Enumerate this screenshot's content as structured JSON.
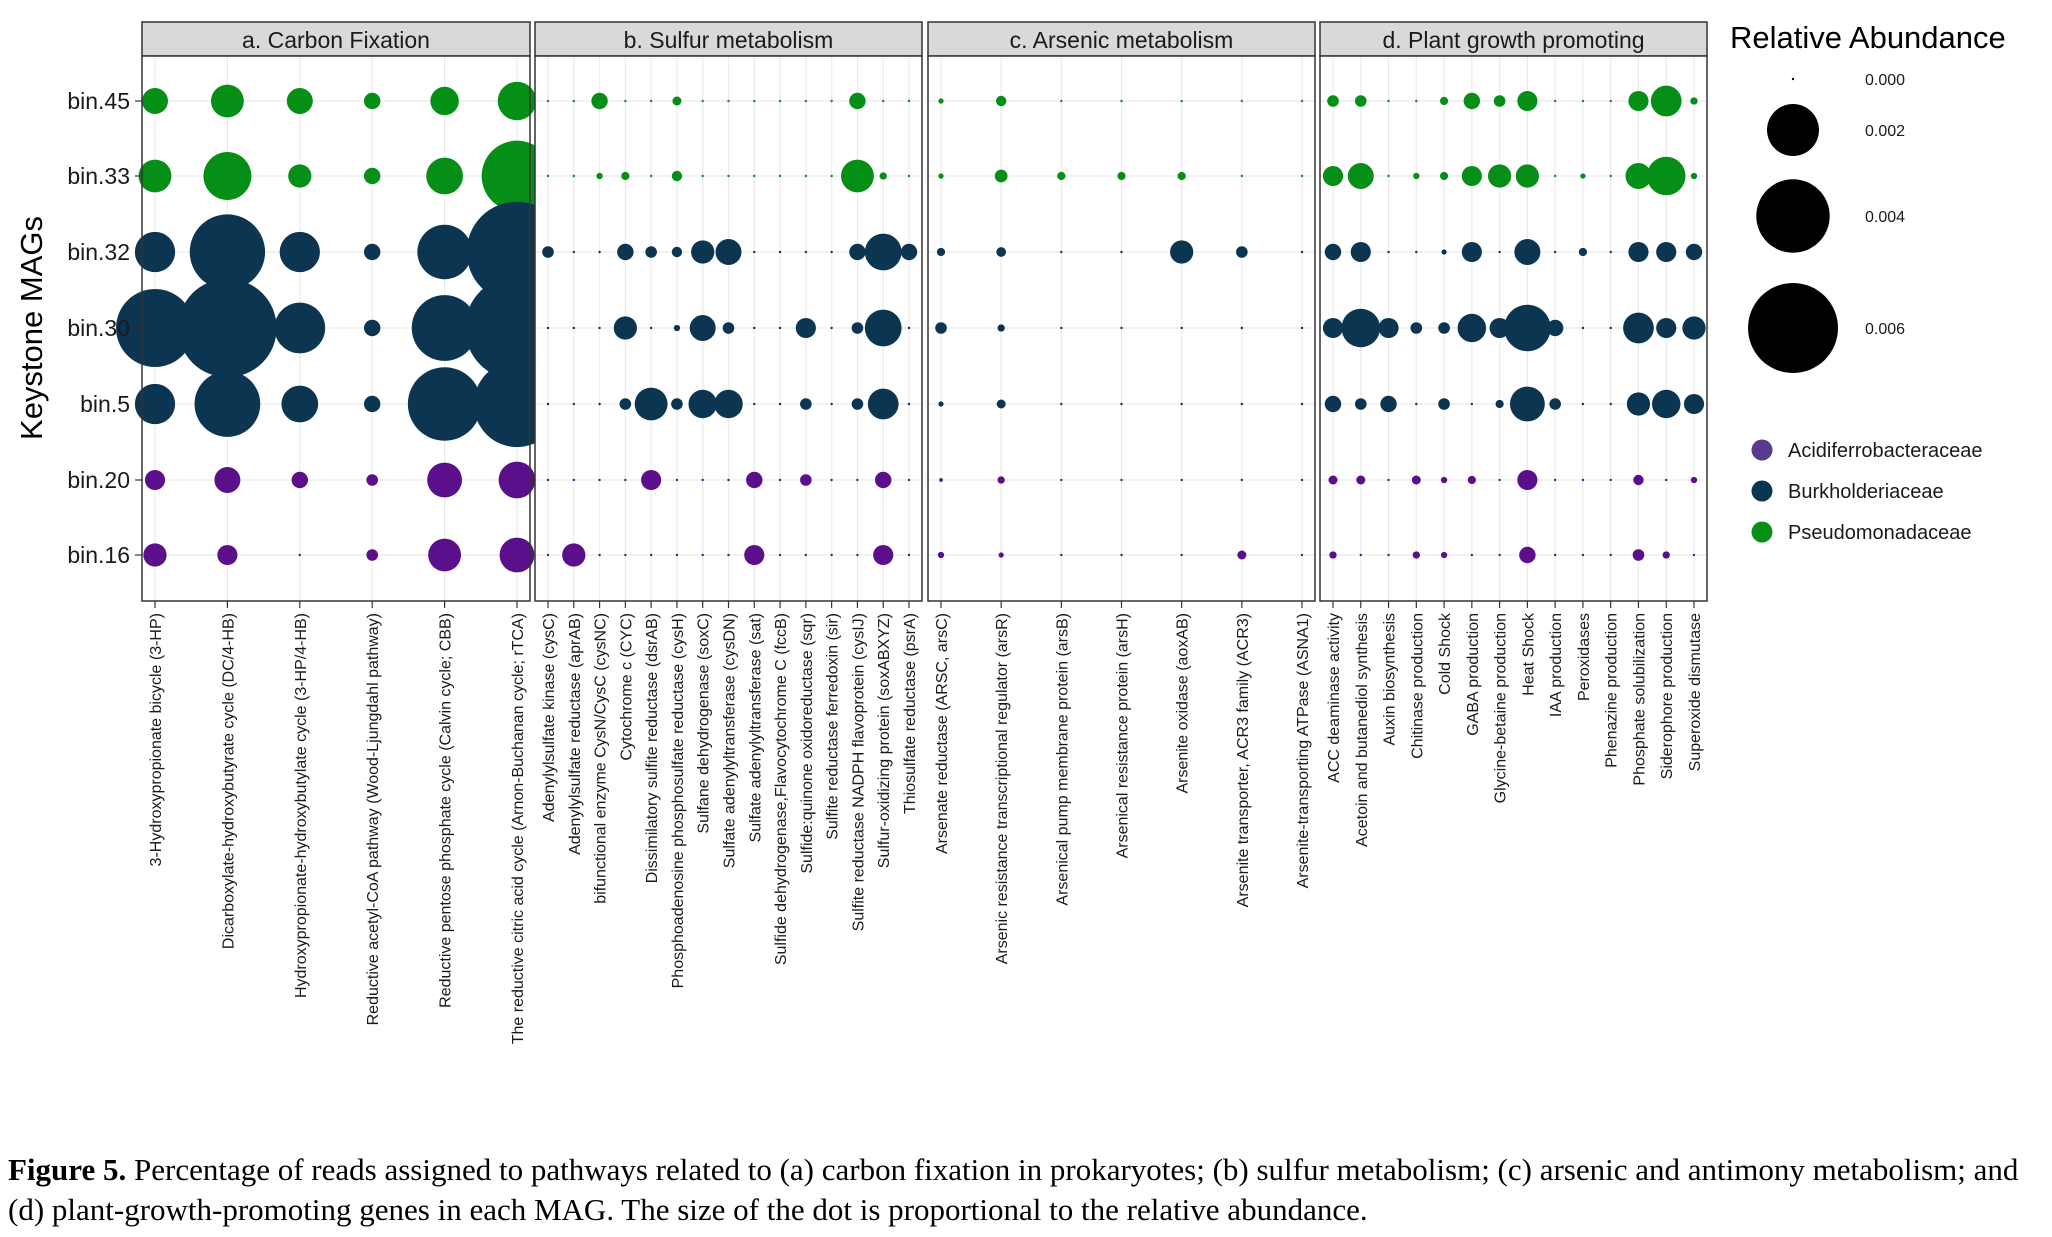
{
  "caption": {
    "label": "Figure 5.",
    "text": "Percentage of reads assigned to pathways related to (a) carbon fixation in prokaryotes; (b) sulfur metabolism; (c) arsenic and antimony metabolism; and (d) plant-growth-promoting genes in each MAG. The size of the dot is proportional to the relative abundance."
  },
  "chart_data": {
    "type": "scatter",
    "subtype": "bubble-matrix",
    "ylabel": "Keystone MAGs",
    "rows": [
      "bin.45",
      "bin.33",
      "bin.32",
      "bin.30",
      "bin.5",
      "bin.20",
      "bin.16"
    ],
    "row_family": [
      "Pseudomonadaceae",
      "Pseudomonadaceae",
      "Burkholderiaceae",
      "Burkholderiaceae",
      "Burkholderiaceae",
      "Acidiferrobacteraceae",
      "Acidiferrobacteraceae"
    ],
    "colors": {
      "Acidiferrobacteraceae": "#5c0f8b",
      "Burkholderiaceae": "#0c3552",
      "Pseudomonadaceae": "#068f16",
      "legend_Acidiferrobacteraceae": "#5b3a8e",
      "strip_fill": "#d9d9d9",
      "gridline": "#ebebeb"
    },
    "size_legend": {
      "title": "Relative Abundance",
      "values": [
        0.0,
        0.002,
        0.004,
        0.006
      ],
      "labels": [
        "0.000",
        "0.002",
        "0.004",
        "0.006"
      ]
    },
    "color_legend": [
      "Acidiferrobacteraceae",
      "Burkholderiaceae",
      "Pseudomonadaceae"
    ],
    "grid": true,
    "legend_position": "right",
    "panels": [
      {
        "title": "a. Carbon Fixation",
        "columns": [
          {
            "label": "3-Hydroxypropionate bicycle (3-HP)",
            "values": [
              0.0005,
              0.0008,
              0.0012,
              0.0045,
              0.0012,
              0.0003,
              0.0004
            ]
          },
          {
            "label": "Dicarboxylate-hydroxybutyrate cycle (DC/4-HB)",
            "values": [
              0.0008,
              0.0017,
              0.0042,
              0.0072,
              0.0032,
              0.0005,
              0.0003
            ]
          },
          {
            "label": "Hydroxypropionate-hydroxybutylate cycle (3-HP/4-HB)",
            "values": [
              0.0005,
              0.0004,
              0.0012,
              0.0019,
              0.001,
              0.0002,
              0.0
            ]
          },
          {
            "label": "Reductive acetyl-CoA pathway (Wood-Ljungdahl pathway)",
            "values": [
              0.0002,
              0.0002,
              0.0002,
              0.0002,
              0.0002,
              0.0001,
              0.0001
            ]
          },
          {
            "label": "Reductive pentose phosphate cycle (Calvin cycle; CBB)",
            "values": [
              0.0006,
              0.001,
              0.0022,
              0.0032,
              0.004,
              0.0009,
              0.0008
            ]
          },
          {
            "label": "The reductive citric acid cycle (Arnon-Buchanan cycle; rTCA)",
            "values": [
              0.0011,
              0.0037,
              0.0075,
              0.008,
              0.0055,
              0.001,
              0.0009
            ]
          }
        ]
      },
      {
        "title": "b. Sulfur metabolism",
        "columns": [
          {
            "label": "Adenylylsulfate kinase (cysC)",
            "values": [
              0,
              0,
              0.0001,
              0,
              0,
              0,
              0
            ]
          },
          {
            "label": "Adenylylsulfate reductase (aprAB)",
            "values": [
              0,
              0,
              0,
              0,
              0,
              0,
              0.0004
            ]
          },
          {
            "label": "bifunctional enzyme CysN/CysC (cysNC)",
            "values": [
              0.0002,
              3e-05,
              0,
              0,
              0,
              0,
              0
            ]
          },
          {
            "label": "Cytochrome c (CYC)",
            "values": [
              0,
              5e-05,
              0.0002,
              0.0004,
              0.0001,
              0,
              0
            ]
          },
          {
            "label": "Dissimilatory sulfite reductase (dsrAB)",
            "values": [
              0,
              0,
              0.0001,
              0,
              0.0008,
              0.0003,
              0
            ]
          },
          {
            "label": "Phosphoadenosine phosphosulfate reductase (cysH)",
            "values": [
              6e-05,
              8e-05,
              8e-05,
              3e-05,
              0.0001,
              0,
              0
            ]
          },
          {
            "label": "Sulfane dehydrogenase (soxC)",
            "values": [
              0,
              0,
              0.0004,
              0.0005,
              0.0006,
              0,
              0
            ]
          },
          {
            "label": "Sulfate adenylyltransferase (cysDN)",
            "values": [
              0,
              0,
              0.0005,
              0.0001,
              0.0006,
              0,
              0
            ]
          },
          {
            "label": "Sulfate adenylyltransferase (sat)",
            "values": [
              0,
              0,
              0,
              0,
              0,
              0.0002,
              0.0003
            ]
          },
          {
            "label": "Sulfide dehydrogenase,Flavocytochrome C (fccB)",
            "values": [
              0,
              0,
              0,
              0,
              0,
              0,
              0
            ]
          },
          {
            "label": "Sulfide:quinone oxidoreductase (sqr)",
            "values": [
              0,
              0,
              0,
              0.0003,
              0.0001,
              0.0001,
              0
            ]
          },
          {
            "label": "Sulfite reductase ferredoxin (sir)",
            "values": [
              0,
              0,
              0,
              0,
              0,
              0,
              0
            ]
          },
          {
            "label": "Sulfite reductase NADPH flavoprotein (cysIJ)",
            "values": [
              0.0002,
              0.0008,
              0.0002,
              0.0001,
              0.0001,
              0,
              0
            ]
          },
          {
            "label": "Sulfur-oxidizing protein (soxABXYZ)",
            "values": [
              0,
              4e-05,
              0.001,
              0.001,
              0.0007,
              0.0002,
              0.0003
            ]
          },
          {
            "label": "Thiosulfate reductase (psrA)",
            "values": [
              0,
              0,
              0.0002,
              0,
              0,
              0,
              0
            ]
          }
        ]
      },
      {
        "title": "c. Arsenic metabolism",
        "columns": [
          {
            "label": "Arsenate reductase (ARSC, arsC)",
            "values": [
              2e-05,
              2e-05,
              5e-05,
              0.0001,
              2e-05,
              1e-05,
              3e-05
            ]
          },
          {
            "label": "Arsenic resistance transcriptional regulator (arsR)",
            "values": [
              8e-05,
              0.00012,
              7e-05,
              4e-05,
              6e-05,
              4e-05,
              2e-05
            ]
          },
          {
            "label": "Arsenical pump membrane protein (arsB)",
            "values": [
              0,
              5e-05,
              0,
              0,
              0,
              0,
              0
            ]
          },
          {
            "label": "Arsenical resistance protein (arsH)",
            "values": [
              0,
              5e-05,
              0,
              0,
              0,
              0,
              0
            ]
          },
          {
            "label": "Arsenite oxidase (aoxAB)",
            "values": [
              0,
              5e-05,
              0.0004,
              0,
              0,
              0,
              0
            ]
          },
          {
            "label": "Arsenite transporter, ACR3 family (ACR3)",
            "values": [
              0,
              0,
              0.0001,
              0,
              0,
              0,
              6e-05
            ]
          },
          {
            "label": "Arsenite-transporting ATPase (ASNA1)",
            "values": [
              0,
              0,
              0,
              0,
              0,
              0,
              0
            ]
          }
        ]
      },
      {
        "title": "d. Plant growth promoting",
        "columns": [
          {
            "label": "ACC deaminase activity",
            "values": [
              0.0001,
              0.0003,
              0.0002,
              0.0003,
              0.0002,
              6e-05,
              4e-05
            ]
          },
          {
            "label": "Acetoin and butanediol synthesis",
            "values": [
              0.0001,
              0.0005,
              0.0003,
              0.0011,
              0.0001,
              6e-05,
              0
            ]
          },
          {
            "label": "Auxin biosynthesis",
            "values": [
              0,
              0,
              0,
              0.0003,
              0.0002,
              0,
              0
            ]
          },
          {
            "label": "Chitinase production",
            "values": [
              0,
              3e-05,
              0,
              0.0001,
              0,
              6e-05,
              4e-05
            ]
          },
          {
            "label": "Cold Shock",
            "values": [
              5e-05,
              5e-05,
              2e-05,
              0.0001,
              0.0001,
              3e-05,
              3e-05
            ]
          },
          {
            "label": "GABA production",
            "values": [
              0.0002,
              0.0003,
              0.0003,
              0.0006,
              0,
              5e-05,
              0
            ]
          },
          {
            "label": "Glycine-betaine production",
            "values": [
              0.0001,
              0.0004,
              0,
              0.0003,
              5e-05,
              0,
              0
            ]
          },
          {
            "label": "Heat Shock",
            "values": [
              0.0003,
              0.0004,
              0.0005,
              0.0016,
              0.0009,
              0.0003,
              0.0002
            ]
          },
          {
            "label": "IAA production",
            "values": [
              0,
              0,
              0,
              0.0002,
              0.0001,
              0,
              0
            ]
          },
          {
            "label": "Peroxidases",
            "values": [
              0,
              2e-05,
              5e-05,
              0,
              0,
              0,
              0
            ]
          },
          {
            "label": "Phenazine production",
            "values": [
              0,
              0,
              0,
              0,
              0,
              0,
              0
            ]
          },
          {
            "label": "Phosphate solubilization",
            "values": [
              0.0003,
              0.0005,
              0.0003,
              0.0007,
              0.0004,
              8e-05,
              0.0001
            ]
          },
          {
            "label": "Siderophore production",
            "values": [
              0.0007,
              0.0011,
              0.0003,
              0.0003,
              0.0006,
              0,
              4e-05
            ]
          },
          {
            "label": "Superoxide dismutase",
            "values": [
              4e-05,
              3e-05,
              0.0002,
              0.0004,
              0.0003,
              3e-05,
              0
            ]
          }
        ]
      }
    ]
  }
}
